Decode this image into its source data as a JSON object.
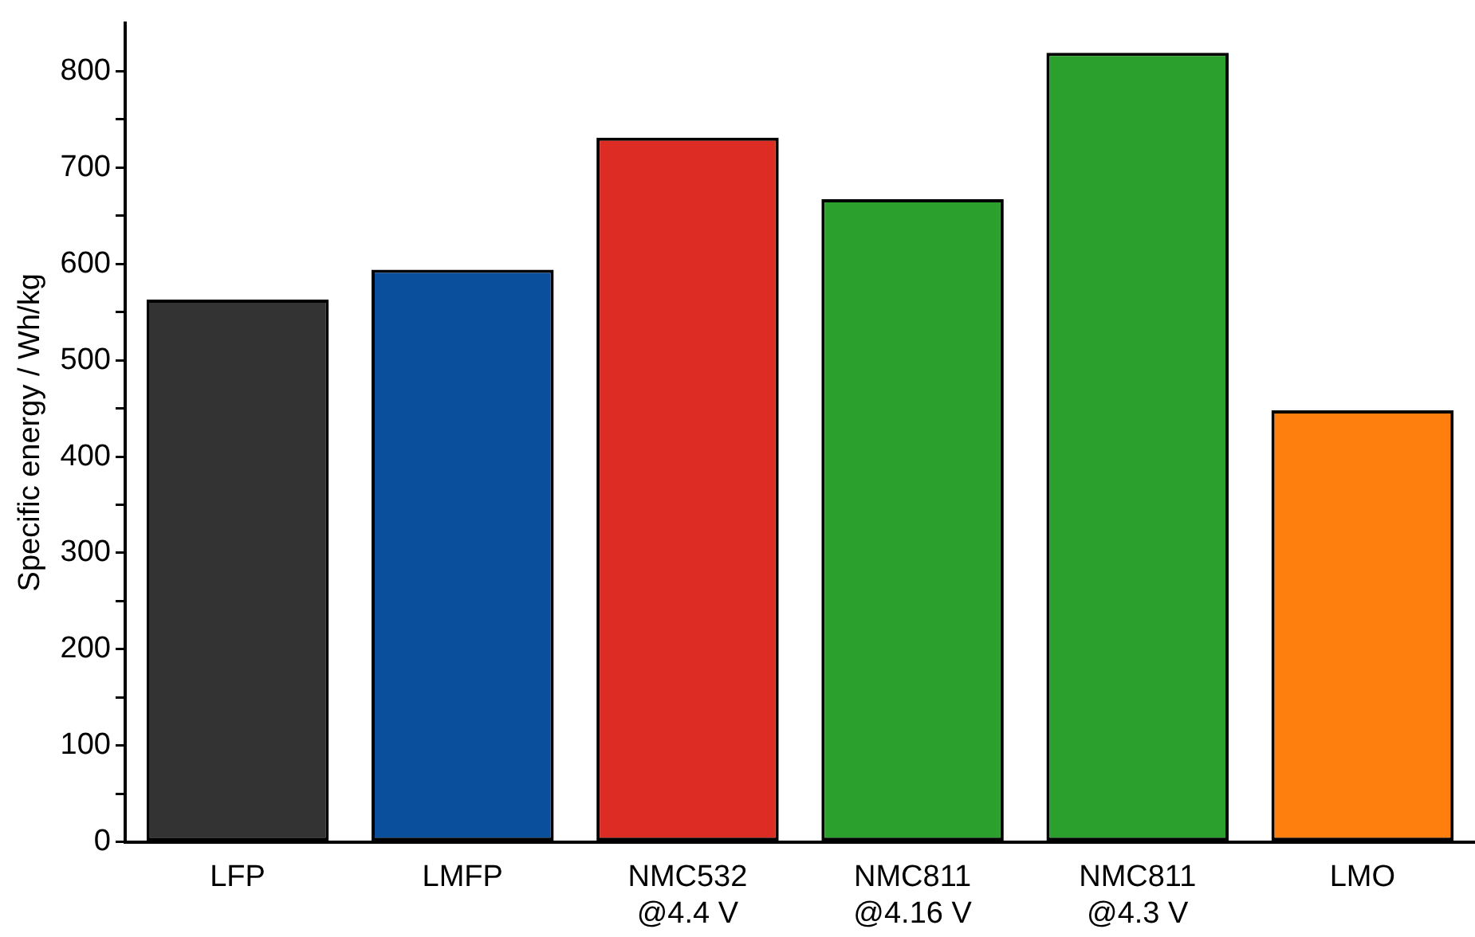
{
  "chart_data": {
    "type": "bar",
    "ylabel": "Specific energy / Wh/kg",
    "categories": [
      "LFP",
      "LMFP",
      "NMC532\n@4.4 V",
      "NMC811\n@4.16 V",
      "NMC811\n@4.3 V",
      "LMO"
    ],
    "values": [
      563,
      594,
      731,
      667,
      819,
      448
    ],
    "colors": [
      "#333333",
      "#0a4f9c",
      "#dd2c24",
      "#2ca02c",
      "#2ca02c",
      "#ff7f0e"
    ],
    "ylim": [
      0,
      850
    ],
    "yticks": [
      0,
      {
        "value": 50,
        "label": null
      },
      100,
      {
        "value": 150,
        "label": null
      },
      200,
      {
        "value": 250,
        "label": null
      },
      300,
      {
        "value": 350,
        "label": null
      },
      400,
      {
        "value": 450,
        "label": null
      },
      500,
      {
        "value": 550,
        "label": null
      },
      600,
      {
        "value": 650,
        "label": null
      },
      700,
      {
        "value": 750,
        "label": null
      },
      800
    ],
    "grid": false,
    "legend": false
  }
}
